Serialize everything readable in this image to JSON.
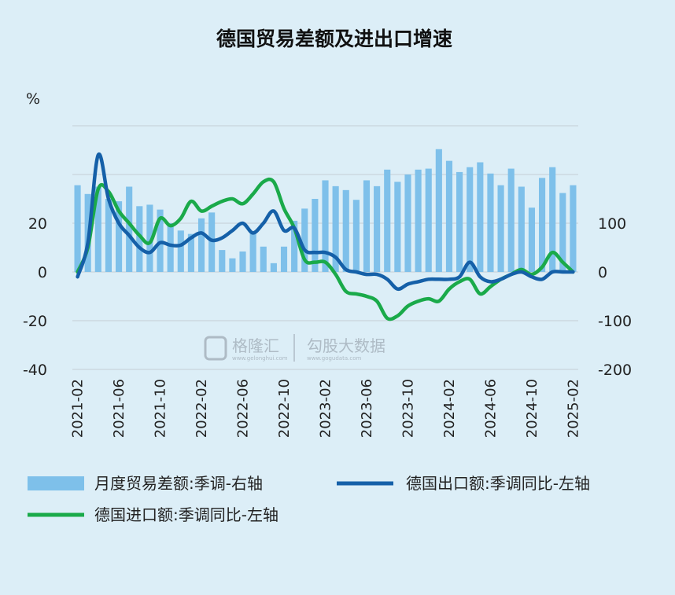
{
  "chart_data": {
    "type": "bar+line",
    "title": "德国贸易差额及进出口增速",
    "left_axis": {
      "unit": "%",
      "ylim": [
        -40,
        60
      ],
      "ticks": [
        "-40",
        "-20",
        "0",
        "20"
      ]
    },
    "right_axis": {
      "ylim": [
        -200,
        300
      ],
      "ticks": [
        "-200",
        "-100",
        "0",
        "100"
      ]
    },
    "x_tick_labels": [
      "2021-02",
      "2021-06",
      "2021-10",
      "2022-02",
      "2022-06",
      "2022-10",
      "2023-02",
      "2023-06",
      "2023-10",
      "2024-02",
      "2024-06",
      "2024-10",
      "2025-02"
    ],
    "grid": true,
    "legend_position": "bottom",
    "series": [
      {
        "name": "月度贸易差额:季调-右轴",
        "kind": "bar",
        "axis": "right",
        "color": "#7ec0ea",
        "values": [
          178,
          160,
          175,
          150,
          145,
          175,
          135,
          138,
          128,
          100,
          85,
          78,
          110,
          122,
          45,
          28,
          42,
          82,
          52,
          18,
          52,
          105,
          130,
          150,
          188,
          176,
          168,
          148,
          188,
          176,
          210,
          185,
          200,
          210,
          212,
          252,
          228,
          205,
          215,
          225,
          202,
          178,
          212,
          175,
          132,
          193,
          215,
          162,
          178
        ]
      },
      {
        "name": "德国出口额:季调同比-左轴",
        "kind": "line",
        "axis": "left",
        "color": "#1560a8",
        "values": [
          -2,
          12,
          48,
          30,
          20,
          15,
          10,
          8,
          12,
          11,
          11,
          14,
          16,
          13,
          14,
          17,
          20,
          16,
          20,
          25,
          17,
          18,
          9,
          8,
          8,
          6,
          1,
          0,
          -1,
          -1,
          -3,
          -7,
          -5,
          -4,
          -3,
          -3,
          -3,
          -2,
          4,
          -2,
          -4,
          -3,
          -1,
          0,
          -2,
          -3,
          0,
          0,
          0
        ]
      },
      {
        "name": "德国进口额:季调同比-左轴",
        "kind": "line",
        "axis": "left",
        "color": "#1aaa4a",
        "values": [
          0,
          10,
          34,
          33,
          25,
          20,
          15,
          12,
          22,
          19,
          22,
          29,
          25,
          27,
          29,
          30,
          28,
          32,
          37,
          37,
          26,
          18,
          5,
          4,
          4,
          -1,
          -8,
          -9,
          -10,
          -12,
          -19,
          -18,
          -14,
          -12,
          -11,
          -12,
          -7,
          -4,
          -3,
          -9,
          -6,
          -3,
          -1,
          1,
          -1,
          2,
          8,
          4,
          0
        ]
      }
    ]
  },
  "watermark": {
    "brand1": "格隆汇",
    "brand1_url": "www.gelonghui.com",
    "brand2": "勾股大数据",
    "brand2_url": "www.gogudata.com"
  }
}
